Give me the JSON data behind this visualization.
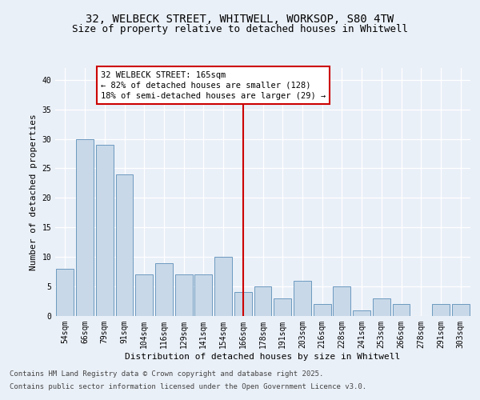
{
  "title_line1": "32, WELBECK STREET, WHITWELL, WORKSOP, S80 4TW",
  "title_line2": "Size of property relative to detached houses in Whitwell",
  "xlabel": "Distribution of detached houses by size in Whitwell",
  "ylabel": "Number of detached properties",
  "categories": [
    "54sqm",
    "66sqm",
    "79sqm",
    "91sqm",
    "104sqm",
    "116sqm",
    "129sqm",
    "141sqm",
    "154sqm",
    "166sqm",
    "178sqm",
    "191sqm",
    "203sqm",
    "216sqm",
    "228sqm",
    "241sqm",
    "253sqm",
    "266sqm",
    "278sqm",
    "291sqm",
    "303sqm"
  ],
  "values": [
    8,
    30,
    29,
    24,
    7,
    9,
    7,
    7,
    10,
    4,
    5,
    3,
    6,
    2,
    5,
    1,
    3,
    2,
    0,
    2,
    2
  ],
  "bar_color": "#c8d8e8",
  "bar_edge_color": "#5b8db8",
  "vline_index": 9,
  "vline_color": "#cc0000",
  "annotation_text": "32 WELBECK STREET: 165sqm\n← 82% of detached houses are smaller (128)\n18% of semi-detached houses are larger (29) →",
  "annotation_box_color": "#ffffff",
  "annotation_box_edge": "#cc0000",
  "ylim": [
    0,
    42
  ],
  "yticks": [
    0,
    5,
    10,
    15,
    20,
    25,
    30,
    35,
    40
  ],
  "background_color": "#eaf0f8",
  "grid_color": "#ffffff",
  "footer_line1": "Contains HM Land Registry data © Crown copyright and database right 2025.",
  "footer_line2": "Contains public sector information licensed under the Open Government Licence v3.0.",
  "title_fontsize": 10,
  "subtitle_fontsize": 9,
  "axis_label_fontsize": 8,
  "tick_fontsize": 7,
  "annotation_fontsize": 7.5,
  "footer_fontsize": 6.5
}
